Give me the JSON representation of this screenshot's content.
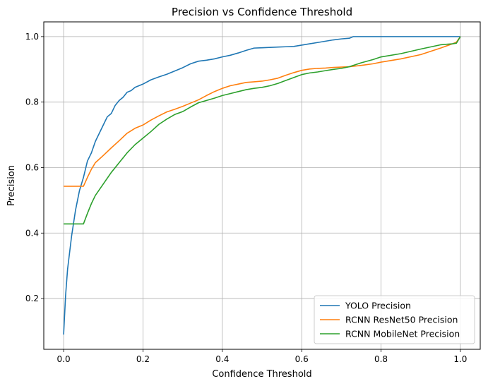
{
  "chart_data": {
    "type": "line",
    "title": "Precision vs Confidence Threshold",
    "xlabel": "Confidence Threshold",
    "ylabel": "Precision",
    "xlim": [
      -0.05,
      1.05
    ],
    "ylim": [
      0.045,
      1.045
    ],
    "xticks": [
      0.0,
      0.2,
      0.4,
      0.6,
      0.8,
      1.0
    ],
    "xtick_labels": [
      "0.0",
      "0.2",
      "0.4",
      "0.6",
      "0.8",
      "1.0"
    ],
    "yticks": [
      0.2,
      0.4,
      0.6,
      0.8,
      1.0
    ],
    "ytick_labels": [
      "0.2",
      "0.4",
      "0.6",
      "0.8",
      "1.0"
    ],
    "grid": true,
    "legend_position": "bottom-right",
    "series": [
      {
        "name": "YOLO Precision",
        "color": "#1f77b4",
        "x": [
          0.0,
          0.005,
          0.01,
          0.02,
          0.03,
          0.04,
          0.05,
          0.06,
          0.07,
          0.08,
          0.09,
          0.1,
          0.11,
          0.12,
          0.13,
          0.14,
          0.15,
          0.16,
          0.17,
          0.18,
          0.2,
          0.22,
          0.24,
          0.26,
          0.28,
          0.3,
          0.32,
          0.34,
          0.36,
          0.38,
          0.4,
          0.42,
          0.44,
          0.46,
          0.48,
          0.5,
          0.52,
          0.54,
          0.56,
          0.58,
          0.6,
          0.62,
          0.64,
          0.66,
          0.68,
          0.7,
          0.72,
          0.73,
          0.75,
          0.8,
          0.85,
          0.9,
          0.95,
          1.0
        ],
        "y": [
          0.09,
          0.21,
          0.29,
          0.39,
          0.47,
          0.53,
          0.57,
          0.62,
          0.645,
          0.68,
          0.705,
          0.73,
          0.755,
          0.765,
          0.79,
          0.805,
          0.815,
          0.83,
          0.835,
          0.845,
          0.855,
          0.868,
          0.877,
          0.885,
          0.895,
          0.905,
          0.917,
          0.925,
          0.928,
          0.932,
          0.938,
          0.943,
          0.95,
          0.958,
          0.965,
          0.966,
          0.967,
          0.968,
          0.969,
          0.97,
          0.974,
          0.978,
          0.982,
          0.986,
          0.99,
          0.993,
          0.995,
          1.0,
          1.0,
          1.0,
          1.0,
          1.0,
          1.0,
          1.0
        ]
      },
      {
        "name": "RCNN ResNet50 Precision",
        "color": "#ff7f0e",
        "x": [
          0.0,
          0.05,
          0.06,
          0.07,
          0.08,
          0.1,
          0.12,
          0.14,
          0.16,
          0.18,
          0.2,
          0.22,
          0.24,
          0.26,
          0.28,
          0.3,
          0.32,
          0.34,
          0.36,
          0.38,
          0.4,
          0.42,
          0.44,
          0.46,
          0.48,
          0.5,
          0.52,
          0.54,
          0.56,
          0.58,
          0.6,
          0.62,
          0.64,
          0.66,
          0.68,
          0.7,
          0.72,
          0.75,
          0.78,
          0.8,
          0.85,
          0.9,
          0.95,
          0.98,
          0.99,
          1.0
        ],
        "y": [
          0.543,
          0.543,
          0.57,
          0.595,
          0.615,
          0.637,
          0.66,
          0.682,
          0.705,
          0.72,
          0.73,
          0.745,
          0.758,
          0.77,
          0.778,
          0.787,
          0.797,
          0.807,
          0.82,
          0.832,
          0.842,
          0.85,
          0.855,
          0.86,
          0.862,
          0.864,
          0.868,
          0.873,
          0.882,
          0.89,
          0.897,
          0.901,
          0.903,
          0.904,
          0.906,
          0.907,
          0.908,
          0.912,
          0.917,
          0.922,
          0.932,
          0.945,
          0.965,
          0.978,
          0.983,
          1.0
        ]
      },
      {
        "name": "RCNN MobileNet Precision",
        "color": "#2ca02c",
        "x": [
          0.0,
          0.05,
          0.06,
          0.07,
          0.08,
          0.1,
          0.12,
          0.14,
          0.16,
          0.18,
          0.2,
          0.22,
          0.24,
          0.26,
          0.28,
          0.3,
          0.32,
          0.34,
          0.36,
          0.38,
          0.4,
          0.42,
          0.44,
          0.46,
          0.48,
          0.5,
          0.52,
          0.54,
          0.56,
          0.58,
          0.6,
          0.62,
          0.64,
          0.66,
          0.68,
          0.7,
          0.72,
          0.75,
          0.78,
          0.8,
          0.85,
          0.9,
          0.95,
          0.98,
          0.99,
          1.0
        ],
        "y": [
          0.428,
          0.428,
          0.46,
          0.49,
          0.515,
          0.55,
          0.585,
          0.615,
          0.645,
          0.67,
          0.69,
          0.71,
          0.732,
          0.748,
          0.762,
          0.771,
          0.785,
          0.798,
          0.805,
          0.812,
          0.82,
          0.826,
          0.832,
          0.838,
          0.842,
          0.845,
          0.85,
          0.857,
          0.866,
          0.875,
          0.884,
          0.889,
          0.892,
          0.896,
          0.9,
          0.903,
          0.908,
          0.92,
          0.93,
          0.938,
          0.948,
          0.962,
          0.975,
          0.978,
          0.98,
          1.0
        ]
      }
    ]
  }
}
